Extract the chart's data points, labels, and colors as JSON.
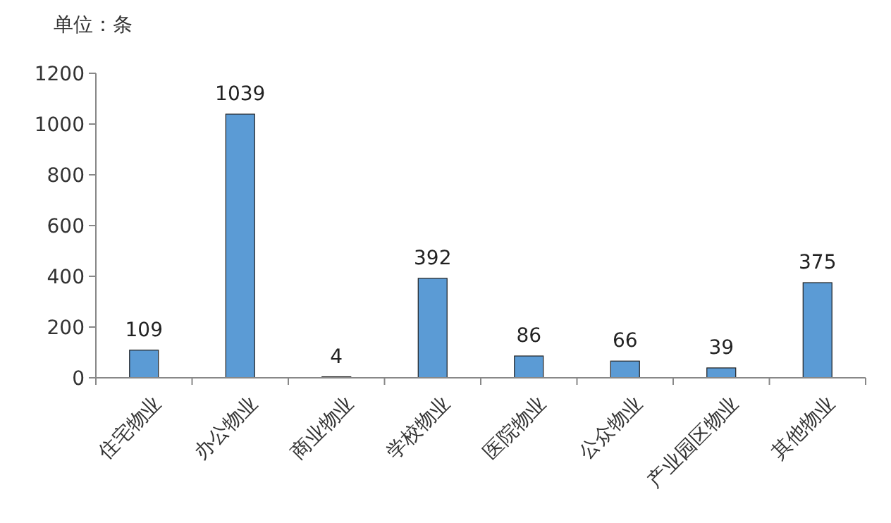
{
  "chart_data": {
    "type": "bar",
    "ylabel": "单位：条",
    "categories": [
      "住宅物业",
      "办公物业",
      "商业物业",
      "学校物业",
      "医院物业",
      "公众物业",
      "产业园区物业",
      "其他物业"
    ],
    "values": [
      109,
      1039,
      4,
      392,
      86,
      66,
      39,
      375
    ],
    "color": "#5b9bd5",
    "ylim": [
      0,
      1200
    ],
    "yticks": [
      0,
      200,
      400,
      600,
      800,
      1000,
      1200
    ],
    "grid": false,
    "data_labels": true
  }
}
